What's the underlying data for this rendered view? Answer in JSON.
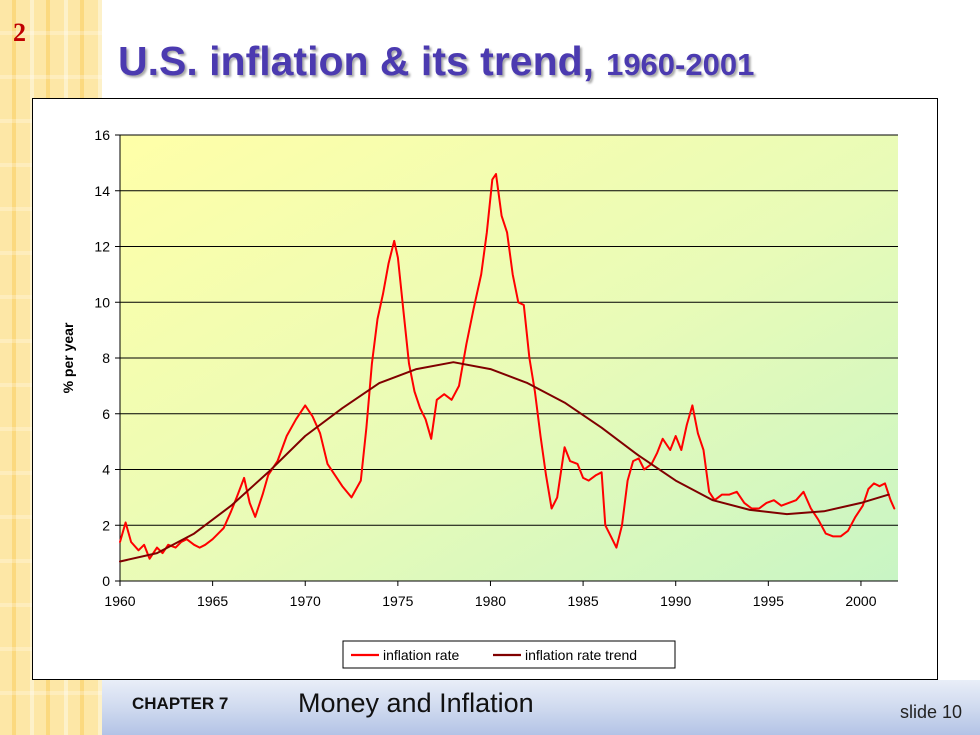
{
  "slide": {
    "number": "2",
    "title_main": "U.S. inflation & its trend,",
    "title_years": "1960-2001",
    "footer_chapter": "CHAPTER 7",
    "footer_title": "Money and Inflation",
    "footer_slide": "slide 10"
  },
  "colors": {
    "inflation": "#ff0000",
    "trend": "#800000",
    "title": "#4b3ab0"
  },
  "chart_data": {
    "type": "line",
    "title": "",
    "xlabel": "",
    "ylabel": "% per year",
    "xlim": [
      1960,
      2002
    ],
    "ylim": [
      0,
      16
    ],
    "x_ticks": [
      1960,
      1965,
      1970,
      1975,
      1980,
      1985,
      1990,
      1995,
      2000
    ],
    "y_ticks": [
      0,
      2,
      4,
      6,
      8,
      10,
      12,
      14,
      16
    ],
    "grid": "horizontal",
    "legend": "bottom-center",
    "series": [
      {
        "name": "inflation rate",
        "points": [
          [
            1960.0,
            1.4
          ],
          [
            1960.3,
            2.1
          ],
          [
            1960.6,
            1.4
          ],
          [
            1961.0,
            1.1
          ],
          [
            1961.3,
            1.3
          ],
          [
            1961.6,
            0.8
          ],
          [
            1962.0,
            1.2
          ],
          [
            1962.3,
            1.0
          ],
          [
            1962.6,
            1.3
          ],
          [
            1963.0,
            1.2
          ],
          [
            1963.3,
            1.4
          ],
          [
            1963.6,
            1.5
          ],
          [
            1964.0,
            1.3
          ],
          [
            1964.3,
            1.2
          ],
          [
            1964.6,
            1.3
          ],
          [
            1965.0,
            1.5
          ],
          [
            1965.3,
            1.7
          ],
          [
            1965.6,
            1.9
          ],
          [
            1966.0,
            2.5
          ],
          [
            1966.3,
            3.0
          ],
          [
            1966.7,
            3.7
          ],
          [
            1967.0,
            2.8
          ],
          [
            1967.3,
            2.3
          ],
          [
            1967.7,
            3.1
          ],
          [
            1968.0,
            3.8
          ],
          [
            1968.5,
            4.3
          ],
          [
            1969.0,
            5.2
          ],
          [
            1969.5,
            5.8
          ],
          [
            1970.0,
            6.3
          ],
          [
            1970.4,
            5.9
          ],
          [
            1970.8,
            5.3
          ],
          [
            1971.2,
            4.2
          ],
          [
            1971.6,
            3.8
          ],
          [
            1972.0,
            3.4
          ],
          [
            1972.5,
            3.0
          ],
          [
            1973.0,
            3.6
          ],
          [
            1973.3,
            5.5
          ],
          [
            1973.6,
            7.8
          ],
          [
            1973.9,
            9.4
          ],
          [
            1974.2,
            10.3
          ],
          [
            1974.5,
            11.4
          ],
          [
            1974.8,
            12.2
          ],
          [
            1975.0,
            11.6
          ],
          [
            1975.3,
            9.7
          ],
          [
            1975.6,
            7.8
          ],
          [
            1975.9,
            6.8
          ],
          [
            1976.2,
            6.2
          ],
          [
            1976.5,
            5.8
          ],
          [
            1976.8,
            5.1
          ],
          [
            1977.1,
            6.5
          ],
          [
            1977.5,
            6.7
          ],
          [
            1977.9,
            6.5
          ],
          [
            1978.3,
            7.0
          ],
          [
            1978.7,
            8.5
          ],
          [
            1979.1,
            9.8
          ],
          [
            1979.5,
            11.0
          ],
          [
            1979.8,
            12.5
          ],
          [
            1980.1,
            14.4
          ],
          [
            1980.3,
            14.6
          ],
          [
            1980.6,
            13.1
          ],
          [
            1980.9,
            12.5
          ],
          [
            1981.2,
            11.0
          ],
          [
            1981.5,
            10.0
          ],
          [
            1981.8,
            9.9
          ],
          [
            1982.1,
            8.0
          ],
          [
            1982.4,
            6.8
          ],
          [
            1982.7,
            5.2
          ],
          [
            1983.0,
            3.8
          ],
          [
            1983.3,
            2.6
          ],
          [
            1983.6,
            3.0
          ],
          [
            1984.0,
            4.8
          ],
          [
            1984.3,
            4.3
          ],
          [
            1984.7,
            4.2
          ],
          [
            1985.0,
            3.7
          ],
          [
            1985.3,
            3.6
          ],
          [
            1985.7,
            3.8
          ],
          [
            1986.0,
            3.9
          ],
          [
            1986.2,
            2.0
          ],
          [
            1986.5,
            1.6
          ],
          [
            1986.8,
            1.2
          ],
          [
            1987.1,
            2.0
          ],
          [
            1987.4,
            3.6
          ],
          [
            1987.7,
            4.3
          ],
          [
            1988.0,
            4.4
          ],
          [
            1988.3,
            4.0
          ],
          [
            1988.7,
            4.2
          ],
          [
            1989.0,
            4.6
          ],
          [
            1989.3,
            5.1
          ],
          [
            1989.7,
            4.7
          ],
          [
            1990.0,
            5.2
          ],
          [
            1990.3,
            4.7
          ],
          [
            1990.6,
            5.6
          ],
          [
            1990.9,
            6.3
          ],
          [
            1991.2,
            5.3
          ],
          [
            1991.5,
            4.7
          ],
          [
            1991.8,
            3.2
          ],
          [
            1992.1,
            2.9
          ],
          [
            1992.5,
            3.1
          ],
          [
            1992.9,
            3.1
          ],
          [
            1993.3,
            3.2
          ],
          [
            1993.7,
            2.8
          ],
          [
            1994.1,
            2.6
          ],
          [
            1994.5,
            2.6
          ],
          [
            1994.9,
            2.8
          ],
          [
            1995.3,
            2.9
          ],
          [
            1995.7,
            2.7
          ],
          [
            1996.1,
            2.8
          ],
          [
            1996.5,
            2.9
          ],
          [
            1996.9,
            3.2
          ],
          [
            1997.3,
            2.6
          ],
          [
            1997.7,
            2.2
          ],
          [
            1998.1,
            1.7
          ],
          [
            1998.5,
            1.6
          ],
          [
            1998.9,
            1.6
          ],
          [
            1999.3,
            1.8
          ],
          [
            1999.7,
            2.3
          ],
          [
            2000.1,
            2.7
          ],
          [
            2000.4,
            3.3
          ],
          [
            2000.7,
            3.5
          ],
          [
            2001.0,
            3.4
          ],
          [
            2001.3,
            3.5
          ],
          [
            2001.6,
            2.9
          ],
          [
            2001.8,
            2.6
          ]
        ]
      },
      {
        "name": "inflation rate trend",
        "points": [
          [
            1960,
            0.7
          ],
          [
            1962,
            1.0
          ],
          [
            1964,
            1.7
          ],
          [
            1966,
            2.7
          ],
          [
            1968,
            3.9
          ],
          [
            1970,
            5.2
          ],
          [
            1972,
            6.2
          ],
          [
            1974,
            7.1
          ],
          [
            1976,
            7.6
          ],
          [
            1978,
            7.85
          ],
          [
            1980,
            7.6
          ],
          [
            1982,
            7.1
          ],
          [
            1984,
            6.4
          ],
          [
            1986,
            5.5
          ],
          [
            1988,
            4.5
          ],
          [
            1990,
            3.6
          ],
          [
            1992,
            2.9
          ],
          [
            1994,
            2.55
          ],
          [
            1996,
            2.4
          ],
          [
            1998,
            2.5
          ],
          [
            2000,
            2.8
          ],
          [
            2001.5,
            3.1
          ]
        ]
      }
    ]
  }
}
